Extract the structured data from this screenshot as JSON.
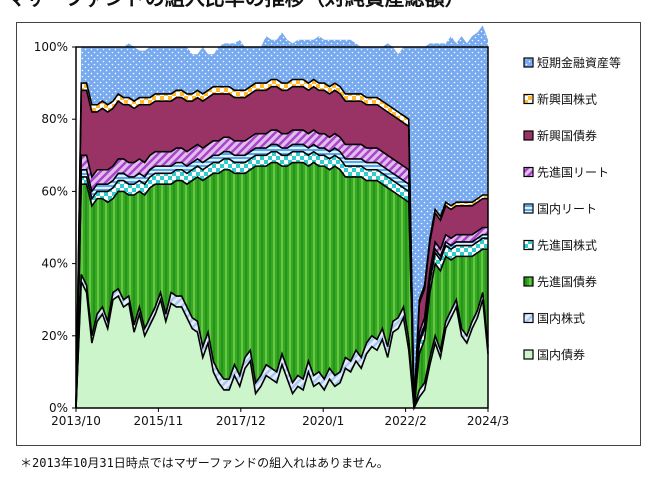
{
  "header": {
    "title": "マザーファンドの組入比率の推移（対純資産総額）"
  },
  "footnote": "＊2013年10月31日時点ではマザーファンドの組入れはありません。",
  "chart_data": {
    "type": "area",
    "stacked": true,
    "x_tick_labels": [
      "2013/10",
      "2015/11",
      "2017/12",
      "2020/1",
      "2022/2",
      "2024/3"
    ],
    "y_ticks": [
      "0%",
      "20%",
      "40%",
      "60%",
      "80%",
      "100%"
    ],
    "ylim": [
      0,
      100
    ],
    "legend_position": "right",
    "grid": false,
    "series": [
      {
        "name": "国内債券",
        "color": "#ccf5cc",
        "pattern": "solid",
        "values": [
          0,
          35,
          32,
          18,
          24,
          26,
          22,
          30,
          31,
          28,
          29,
          21,
          26,
          20,
          23,
          26,
          30,
          24,
          29,
          28,
          28,
          25,
          22,
          21,
          14,
          18,
          10,
          7,
          5,
          5,
          9,
          6,
          11,
          13,
          4,
          6,
          9,
          8,
          7,
          12,
          8,
          4,
          6,
          5,
          10,
          6,
          7,
          5,
          8,
          6,
          7,
          11,
          10,
          13,
          11,
          15,
          17,
          16,
          19,
          14,
          21,
          22,
          25,
          16,
          0,
          3,
          5,
          12,
          18,
          14,
          22,
          25,
          28,
          20,
          18,
          22,
          25,
          30,
          15
        ]
      },
      {
        "name": "国内株式",
        "color": "#aac8f0",
        "pattern": "diag",
        "values": [
          0,
          2,
          2,
          2,
          2,
          2,
          2,
          2,
          2,
          2,
          2,
          2,
          2,
          2,
          2,
          2,
          2,
          2,
          3,
          3,
          3,
          3,
          3,
          3,
          3,
          3,
          3,
          3,
          3,
          3,
          3,
          3,
          3,
          3,
          3,
          3,
          3,
          3,
          3,
          3,
          3,
          3,
          3,
          3,
          3,
          3,
          3,
          3,
          3,
          3,
          3,
          3,
          3,
          3,
          3,
          3,
          3,
          3,
          3,
          3,
          3,
          3,
          3,
          3,
          0,
          2,
          2,
          2,
          2,
          2,
          2,
          2,
          2,
          2,
          2,
          2,
          2,
          2,
          2
        ]
      },
      {
        "name": "先進国債券",
        "color": "#33aa22",
        "pattern": "vlines",
        "values": [
          0,
          25,
          28,
          36,
          32,
          30,
          33,
          26,
          27,
          30,
          28,
          36,
          32,
          37,
          36,
          34,
          30,
          36,
          30,
          32,
          32,
          34,
          38,
          40,
          46,
          43,
          52,
          55,
          58,
          58,
          53,
          56,
          51,
          50,
          60,
          58,
          55,
          57,
          58,
          52,
          56,
          61,
          59,
          60,
          54,
          59,
          57,
          59,
          55,
          58,
          56,
          50,
          51,
          48,
          50,
          45,
          43,
          44,
          40,
          44,
          36,
          34,
          30,
          38,
          0,
          10,
          12,
          18,
          20,
          22,
          18,
          14,
          12,
          20,
          22,
          18,
          16,
          12,
          27
        ]
      },
      {
        "name": "先進国株式",
        "color": "#33cccc",
        "pattern": "check",
        "values": [
          0,
          2,
          2,
          2,
          2,
          2,
          3,
          3,
          3,
          3,
          3,
          3,
          3,
          3,
          3,
          3,
          3,
          3,
          3,
          3,
          3,
          3,
          3,
          3,
          3,
          3,
          3,
          3,
          3,
          3,
          3,
          3,
          3,
          3,
          3,
          3,
          3,
          3,
          3,
          3,
          3,
          3,
          3,
          3,
          3,
          3,
          3,
          3,
          3,
          3,
          3,
          3,
          3,
          3,
          3,
          3,
          3,
          3,
          3,
          3,
          3,
          3,
          3,
          3,
          0,
          3,
          3,
          3,
          3,
          3,
          3,
          3,
          3,
          3,
          3,
          3,
          3,
          3,
          3
        ]
      },
      {
        "name": "国内リート",
        "color": "#55aaee",
        "pattern": "hlines",
        "values": [
          0,
          2,
          2,
          2,
          2,
          2,
          2,
          2,
          2,
          2,
          2,
          2,
          2,
          2,
          2,
          2,
          2,
          2,
          2,
          2,
          2,
          2,
          2,
          2,
          2,
          2,
          2,
          2,
          2,
          2,
          2,
          2,
          2,
          2,
          2,
          2,
          2,
          2,
          2,
          2,
          2,
          2,
          2,
          2,
          2,
          2,
          2,
          2,
          2,
          2,
          2,
          2,
          2,
          2,
          2,
          2,
          2,
          2,
          2,
          2,
          2,
          2,
          2,
          2,
          0,
          1,
          1,
          1,
          1,
          1,
          1,
          1,
          1,
          1,
          1,
          1,
          1,
          1,
          1
        ]
      },
      {
        "name": "先進国リート",
        "color": "#aa44cc",
        "pattern": "diag",
        "values": [
          0,
          4,
          4,
          4,
          4,
          4,
          4,
          4,
          4,
          4,
          4,
          4,
          4,
          4,
          4,
          4,
          4,
          4,
          4,
          4,
          4,
          4,
          4,
          4,
          4,
          4,
          4,
          4,
          4,
          4,
          4,
          4,
          4,
          4,
          4,
          4,
          4,
          4,
          4,
          4,
          4,
          4,
          4,
          4,
          4,
          4,
          4,
          4,
          4,
          4,
          4,
          4,
          4,
          4,
          4,
          4,
          4,
          4,
          4,
          4,
          4,
          4,
          4,
          4,
          0,
          2,
          2,
          2,
          2,
          2,
          2,
          2,
          2,
          2,
          2,
          2,
          2,
          2,
          2
        ]
      },
      {
        "name": "新興国債券",
        "color": "#993366",
        "pattern": "solid",
        "values": [
          0,
          18,
          18,
          18,
          16,
          17,
          16,
          16,
          16,
          15,
          16,
          15,
          15,
          16,
          14,
          14,
          14,
          14,
          14,
          14,
          14,
          14,
          13,
          13,
          13,
          13,
          13,
          13,
          12,
          12,
          12,
          12,
          12,
          12,
          12,
          12,
          12,
          12,
          12,
          12,
          12,
          12,
          12,
          12,
          12,
          12,
          12,
          12,
          12,
          12,
          12,
          12,
          12,
          12,
          12,
          12,
          12,
          12,
          12,
          12,
          12,
          12,
          12,
          12,
          0,
          8,
          8,
          8,
          8,
          8,
          8,
          8,
          8,
          8,
          8,
          8,
          8,
          8,
          8
        ]
      },
      {
        "name": "新興国株式",
        "color": "#ffbb33",
        "pattern": "check",
        "values": [
          0,
          2,
          2,
          2,
          2,
          2,
          2,
          2,
          2,
          2,
          2,
          2,
          2,
          2,
          2,
          2,
          2,
          2,
          2,
          2,
          2,
          2,
          2,
          2,
          2,
          2,
          2,
          2,
          2,
          2,
          2,
          2,
          2,
          2,
          2,
          2,
          2,
          2,
          2,
          2,
          2,
          2,
          2,
          2,
          2,
          2,
          2,
          2,
          2,
          2,
          2,
          2,
          2,
          2,
          2,
          2,
          2,
          2,
          2,
          2,
          2,
          2,
          2,
          2,
          0,
          1,
          1,
          1,
          1,
          1,
          1,
          1,
          1,
          1,
          1,
          1,
          1,
          1,
          1
        ]
      },
      {
        "name": "短期金融資産等",
        "color": "#77aaee",
        "pattern": "dots",
        "values": [
          0,
          10,
          10,
          16,
          16,
          15,
          16,
          15,
          13,
          14,
          15,
          15,
          13,
          13,
          14,
          13,
          13,
          13,
          13,
          12,
          12,
          13,
          11,
          10,
          13,
          10,
          9,
          11,
          12,
          12,
          13,
          14,
          12,
          11,
          10,
          10,
          13,
          11,
          11,
          14,
          12,
          10,
          11,
          11,
          12,
          11,
          13,
          12,
          13,
          12,
          13,
          15,
          15,
          14,
          13,
          14,
          14,
          14,
          15,
          17,
          17,
          16,
          19,
          20,
          100,
          70,
          66,
          54,
          46,
          48,
          44,
          47,
          44,
          46,
          44,
          46,
          46,
          47,
          43
        ]
      }
    ]
  }
}
